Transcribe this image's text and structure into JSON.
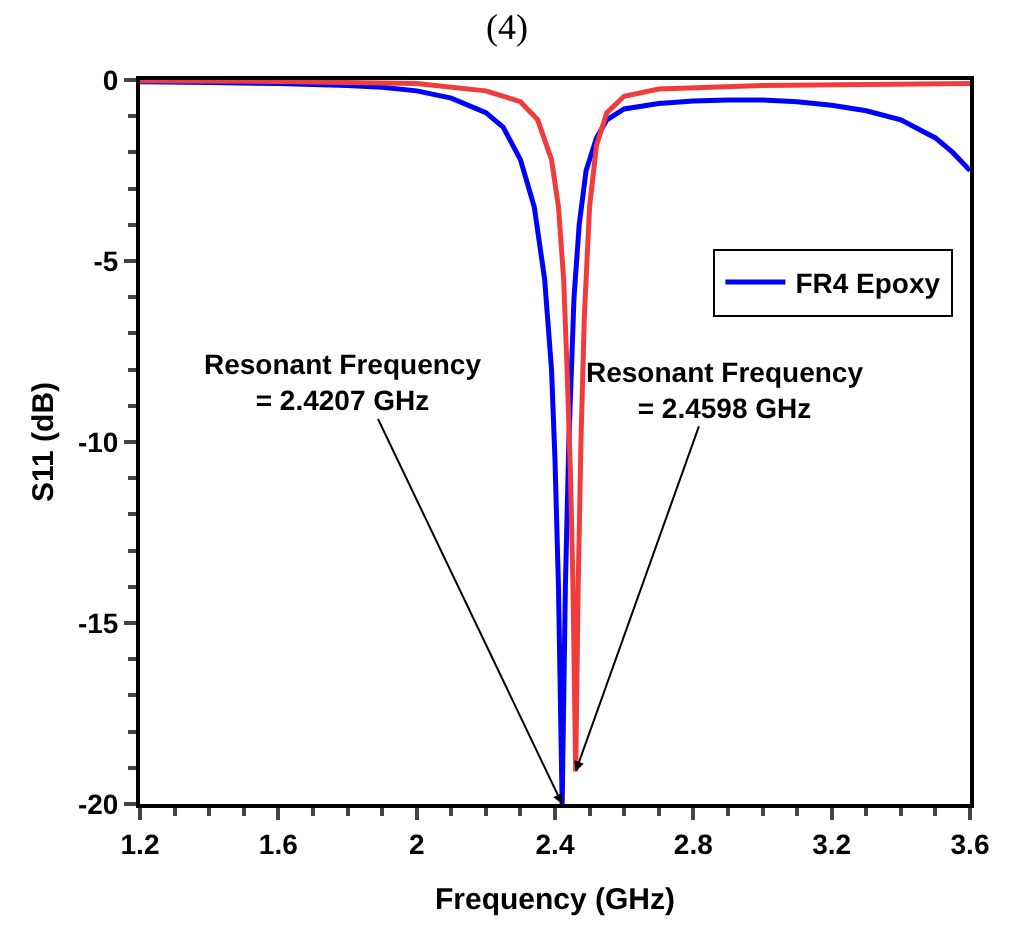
{
  "chart_data": {
    "type": "line",
    "title": "(4)",
    "xlabel": "Frequency (GHz)",
    "ylabel": "S11 (dB)",
    "xlim": [
      1.2,
      3.6
    ],
    "xticks": [
      1.2,
      1.6,
      2.0,
      2.4,
      2.8,
      3.2,
      3.6
    ],
    "ylim": [
      -20,
      0
    ],
    "yticks": [
      -20,
      -15,
      -10,
      -5,
      0
    ],
    "legend": "right",
    "marker": "none",
    "line_style": "solid",
    "series": [
      {
        "name": "FR4 Epoxy",
        "color": "#0000ff",
        "x": [
          1.2,
          1.4,
          1.6,
          1.8,
          1.9,
          2.0,
          2.1,
          2.2,
          2.25,
          2.3,
          2.34,
          2.37,
          2.39,
          2.4,
          2.41,
          2.4207,
          2.43,
          2.44,
          2.455,
          2.47,
          2.49,
          2.52,
          2.55,
          2.6,
          2.7,
          2.8,
          2.9,
          3.0,
          3.1,
          3.2,
          3.3,
          3.4,
          3.5,
          3.55,
          3.6
        ],
        "values": [
          -0.05,
          -0.07,
          -0.1,
          -0.15,
          -0.2,
          -0.3,
          -0.5,
          -0.9,
          -1.3,
          -2.2,
          -3.5,
          -5.5,
          -8,
          -10.5,
          -14,
          -20,
          -14,
          -10,
          -6,
          -4,
          -2.5,
          -1.6,
          -1.1,
          -0.8,
          -0.65,
          -0.58,
          -0.55,
          -0.55,
          -0.6,
          -0.7,
          -0.85,
          -1.1,
          -1.6,
          -2.0,
          -2.5
        ]
      },
      {
        "color": "#f03c3c",
        "x": [
          1.2,
          1.6,
          2.0,
          2.2,
          2.3,
          2.35,
          2.39,
          2.41,
          2.425,
          2.435,
          2.445,
          2.452,
          2.4598,
          2.467,
          2.475,
          2.485,
          2.5,
          2.52,
          2.55,
          2.6,
          2.7,
          3.0,
          3.6
        ],
        "values": [
          -0.02,
          -0.04,
          -0.1,
          -0.3,
          -0.6,
          -1.1,
          -2.2,
          -3.5,
          -5.5,
          -8,
          -11,
          -14,
          -19.1,
          -14,
          -10,
          -6.5,
          -3.5,
          -1.8,
          -0.9,
          -0.45,
          -0.25,
          -0.15,
          -0.1
        ]
      }
    ],
    "annotations": [
      {
        "text": "Resonant Frequency\n= 2.4207 GHz",
        "x": 2.4207,
        "y": -20
      },
      {
        "text": "Resonant Frequency\n= 2.4598 GHz",
        "x": 2.4598,
        "y": -19.1
      }
    ]
  }
}
